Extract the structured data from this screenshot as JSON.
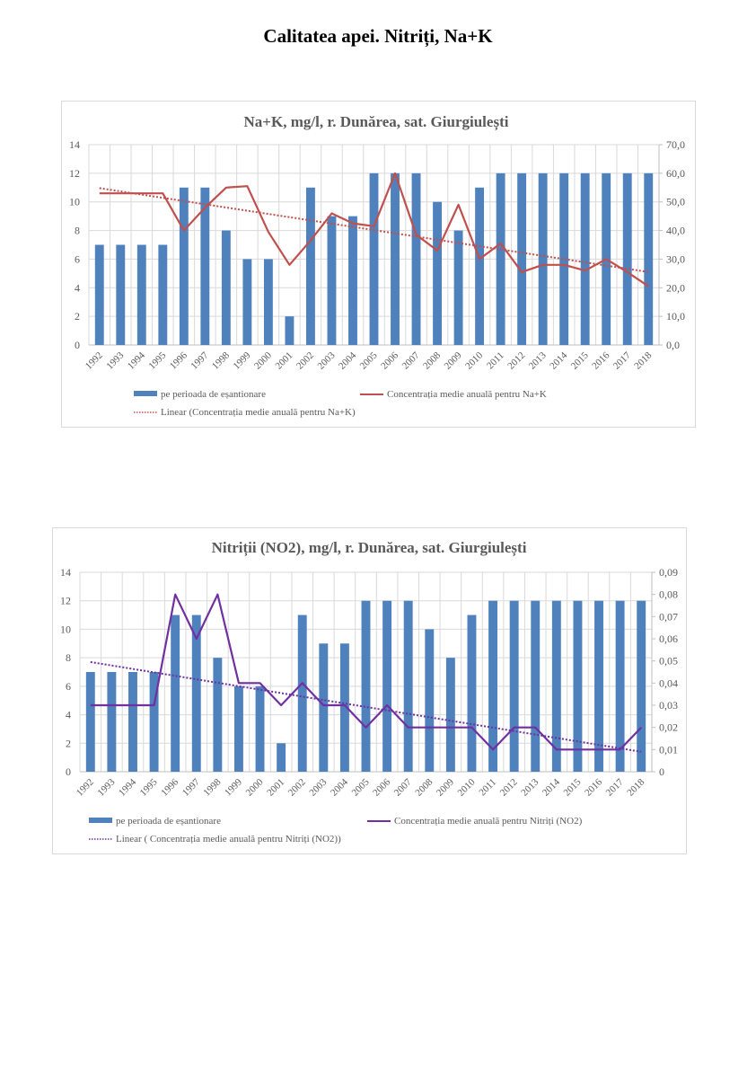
{
  "page": {
    "title": "Calitatea apei. Nitriți, Na+K"
  },
  "chart_data": [
    {
      "type": "bar",
      "title": "Na+K, mg/l, r. Dunărea, sat. Giurgiulești",
      "categories": [
        "1992",
        "1993",
        "1994",
        "1995",
        "1996",
        "1997",
        "1998",
        "1999",
        "2000",
        "2001",
        "2002",
        "2003",
        "2004",
        "2005",
        "2006",
        "2007",
        "2008",
        "2009",
        "2010",
        "2011",
        "2012",
        "2013",
        "2014",
        "2015",
        "2016",
        "2017",
        "2018"
      ],
      "series": [
        {
          "name": "pe perioada de eșantionare",
          "type": "bar",
          "axis": "left",
          "color": "#4f81bd",
          "values": [
            7,
            7,
            7,
            7,
            11,
            11,
            8,
            6,
            6,
            2,
            11,
            9,
            9,
            12,
            12,
            12,
            10,
            8,
            11,
            12,
            12,
            12,
            12,
            12,
            12,
            12,
            12
          ]
        },
        {
          "name": "Concentrația medie anuală pentru Na+K",
          "type": "line",
          "axis": "right",
          "color": "#c0504d",
          "values": [
            53,
            53,
            53,
            53,
            40,
            48,
            55,
            55.5,
            39.5,
            28,
            36.5,
            46,
            42.5,
            41.5,
            60,
            38.5,
            33,
            49,
            30,
            35.5,
            25.5,
            28,
            28,
            26,
            30,
            25.5,
            20.5
          ]
        },
        {
          "name": "Linear (Concentrația medie anuală pentru Na+K)",
          "type": "trendline",
          "axis": "right",
          "color": "#c0504d",
          "start": 54.8,
          "end": 25.5
        }
      ],
      "yleft": {
        "ylim": [
          0,
          14
        ],
        "ticks": [
          "0",
          "2",
          "4",
          "6",
          "8",
          "10",
          "12",
          "14"
        ]
      },
      "yright": {
        "ylim": [
          0,
          70
        ],
        "ticks": [
          "0,0",
          "10,0",
          "20,0",
          "30,0",
          "40,0",
          "50,0",
          "60,0",
          "70,0"
        ]
      },
      "grid": true,
      "legend": "bottom",
      "xlabel": "",
      "ylabel": ""
    },
    {
      "type": "bar",
      "title": "Nitriții (NO2), mg/l, r. Dunărea, sat. Giurgiulești",
      "categories": [
        "1992",
        "1993",
        "1994",
        "1995",
        "1996",
        "1997",
        "1998",
        "1999",
        "2000",
        "2001",
        "2002",
        "2003",
        "2004",
        "2005",
        "2006",
        "2007",
        "2008",
        "2009",
        "2010",
        "2011",
        "2012",
        "2013",
        "2014",
        "2015",
        "2016",
        "2017",
        "2018"
      ],
      "series": [
        {
          "name": "pe perioada de eșantionare",
          "type": "bar",
          "axis": "left",
          "color": "#4f81bd",
          "values": [
            7,
            7,
            7,
            7,
            11,
            11,
            8,
            6,
            6,
            2,
            11,
            9,
            9,
            12,
            12,
            12,
            10,
            8,
            11,
            12,
            12,
            12,
            12,
            12,
            12,
            12,
            12
          ]
        },
        {
          "name": "Concentrația medie anuală pentru Nitriți (NO2)",
          "type": "line",
          "axis": "right",
          "color": "#7030a0",
          "values": [
            0.03,
            0.03,
            0.03,
            0.03,
            0.08,
            0.06,
            0.08,
            0.04,
            0.04,
            0.03,
            0.04,
            0.03,
            0.03,
            0.02,
            0.03,
            0.02,
            0.02,
            0.02,
            0.02,
            0.01,
            0.02,
            0.02,
            0.01,
            0.01,
            0.01,
            0.01,
            0.02
          ]
        },
        {
          "name": "Linear ( Concentrația medie anuală pentru Nitriți (NO2))",
          "type": "trendline",
          "axis": "right",
          "color": "#7030a0",
          "start": 0.0495,
          "end": 0.009
        }
      ],
      "yleft": {
        "ylim": [
          0,
          14
        ],
        "ticks": [
          "0",
          "2",
          "4",
          "6",
          "8",
          "10",
          "12",
          "14"
        ]
      },
      "yright": {
        "ylim": [
          0,
          0.09
        ],
        "ticks": [
          "0",
          "0,01",
          "0,02",
          "0,03",
          "0,04",
          "0,05",
          "0,06",
          "0,07",
          "0,08",
          "0,09"
        ]
      },
      "grid": true,
      "legend": "bottom",
      "xlabel": "",
      "ylabel": ""
    }
  ]
}
